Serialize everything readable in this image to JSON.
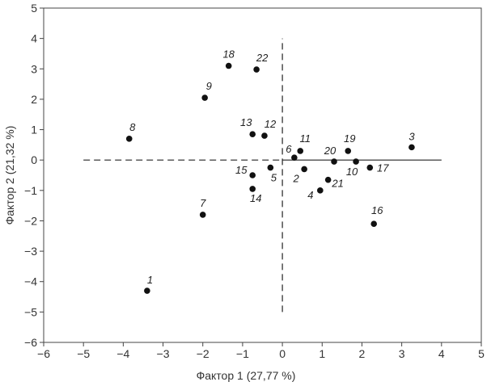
{
  "chart_data": {
    "type": "scatter",
    "xlabel": "Фактор 1 (27,77 %)",
    "ylabel": "Фактор 2 (21,32 %)",
    "xlim": [
      -6,
      5
    ],
    "ylim": [
      -6,
      5
    ],
    "x_ticks": [
      "−6",
      "−5",
      "−4",
      "−3",
      "−2",
      "−1",
      "0",
      "1",
      "2",
      "3",
      "4",
      "5"
    ],
    "y_ticks": [
      "5",
      "4",
      "3",
      "2",
      "1",
      "0",
      "−1",
      "−2",
      "−3",
      "−4",
      "−5",
      "−6"
    ],
    "grid": false,
    "reference_lines": {
      "horizontal_y0": {
        "dashed_from": -5,
        "dashed_to": 0,
        "solid_from": 0,
        "solid_to": 4
      },
      "vertical_x0": {
        "dashed_from": -5,
        "dashed_to": 4
      }
    },
    "points": [
      {
        "label": "1",
        "x": -3.4,
        "y": -4.3
      },
      {
        "label": "2",
        "x": 0.55,
        "y": -0.3
      },
      {
        "label": "3",
        "x": 3.25,
        "y": 0.42
      },
      {
        "label": "4",
        "x": 0.95,
        "y": -1.0
      },
      {
        "label": "5",
        "x": -0.3,
        "y": -0.25
      },
      {
        "label": "6",
        "x": 0.3,
        "y": 0.08
      },
      {
        "label": "7",
        "x": -2.0,
        "y": -1.8
      },
      {
        "label": "8",
        "x": -3.85,
        "y": 0.7
      },
      {
        "label": "9",
        "x": -1.95,
        "y": 2.05
      },
      {
        "label": "10",
        "x": 1.85,
        "y": -0.05
      },
      {
        "label": "11",
        "x": 0.45,
        "y": 0.3
      },
      {
        "label": "12",
        "x": -0.45,
        "y": 0.8
      },
      {
        "label": "13",
        "x": -0.75,
        "y": 0.85
      },
      {
        "label": "14",
        "x": -0.75,
        "y": -0.95
      },
      {
        "label": "15",
        "x": -0.75,
        "y": -0.5
      },
      {
        "label": "16",
        "x": 2.3,
        "y": -2.1
      },
      {
        "label": "17",
        "x": 2.2,
        "y": -0.25
      },
      {
        "label": "18",
        "x": -1.35,
        "y": 3.1
      },
      {
        "label": "19",
        "x": 1.65,
        "y": 0.3
      },
      {
        "label": "20",
        "x": 1.3,
        "y": -0.05
      },
      {
        "label": "21",
        "x": 1.15,
        "y": -0.65
      },
      {
        "label": "22",
        "x": -0.65,
        "y": 2.98
      }
    ]
  }
}
